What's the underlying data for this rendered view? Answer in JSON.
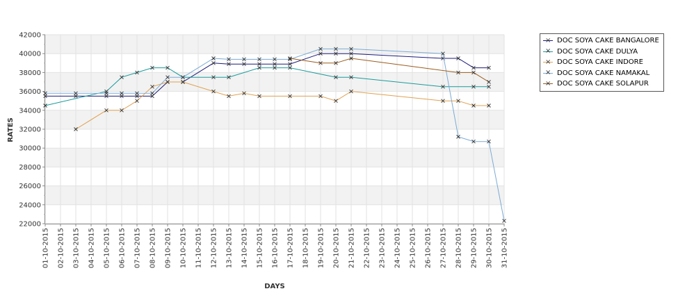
{
  "chart_data": {
    "type": "line",
    "xlabel": "DAYS",
    "ylabel": "RATES",
    "ylim": [
      22000,
      42000
    ],
    "yticks": [
      22000,
      24000,
      26000,
      28000,
      30000,
      32000,
      34000,
      36000,
      38000,
      40000,
      42000
    ],
    "categories": [
      "01-10-2015",
      "02-10-2015",
      "03-10-2015",
      "04-10-2015",
      "05-10-2015",
      "06-10-2015",
      "07-10-2015",
      "08-10-2015",
      "09-10-2015",
      "10-10-2015",
      "11-10-2015",
      "12-10-2015",
      "13-10-2015",
      "14-10-2015",
      "15-10-2015",
      "16-10-2015",
      "17-10-2015",
      "18-10-2015",
      "19-10-2015",
      "20-10-2015",
      "21-10-2015",
      "22-10-2015",
      "23-10-2015",
      "24-10-2015",
      "25-10-2015",
      "26-10-2015",
      "27-10-2015",
      "28-10-2015",
      "29-10-2015",
      "30-10-2015",
      "31-10-2015"
    ],
    "grid": true,
    "legend_position": "right",
    "series": [
      {
        "name": "DOC SOYA CAKE BANGALORE",
        "color": "#1a1a7a",
        "values": [
          35500,
          null,
          35500,
          null,
          35500,
          35500,
          35500,
          35500,
          37000,
          37000,
          null,
          39000,
          38900,
          38900,
          38900,
          38900,
          38900,
          null,
          40000,
          40000,
          40000,
          null,
          null,
          null,
          null,
          null,
          39500,
          39500,
          38500,
          38500,
          null
        ]
      },
      {
        "name": "DOC SOYA CAKE DULYA",
        "color": "#1a9a9a",
        "values": [
          34500,
          null,
          null,
          null,
          36000,
          37500,
          38000,
          38500,
          38500,
          37500,
          null,
          37500,
          37500,
          null,
          38500,
          38500,
          38500,
          null,
          null,
          37500,
          37500,
          null,
          null,
          null,
          null,
          null,
          36500,
          null,
          36500,
          36500,
          null
        ]
      },
      {
        "name": "DOC SOYA CAKE INDORE",
        "color": "#e0a050",
        "values": [
          null,
          null,
          32000,
          null,
          34000,
          34000,
          35000,
          36500,
          37000,
          37000,
          null,
          36000,
          35500,
          35800,
          35500,
          null,
          35500,
          null,
          35500,
          35000,
          36000,
          null,
          null,
          null,
          null,
          null,
          35000,
          35000,
          34500,
          34500,
          null
        ]
      },
      {
        "name": "DOC SOYA CAKE NAMAKAL",
        "color": "#7aaad4",
        "values": [
          35800,
          null,
          35800,
          null,
          35800,
          35800,
          35800,
          35800,
          37500,
          37500,
          null,
          39500,
          39400,
          39400,
          39400,
          39400,
          39400,
          null,
          40500,
          40500,
          40500,
          null,
          null,
          null,
          null,
          null,
          40000,
          31200,
          30700,
          30700,
          22300
        ]
      },
      {
        "name": "DOC SOYA CAKE SOLAPUR",
        "color": "#9a5a1a",
        "values": [
          null,
          null,
          null,
          null,
          null,
          null,
          null,
          null,
          null,
          null,
          null,
          null,
          null,
          null,
          null,
          null,
          39500,
          null,
          39000,
          39000,
          39500,
          null,
          null,
          null,
          null,
          null,
          null,
          38000,
          38000,
          37000,
          null
        ]
      }
    ]
  }
}
